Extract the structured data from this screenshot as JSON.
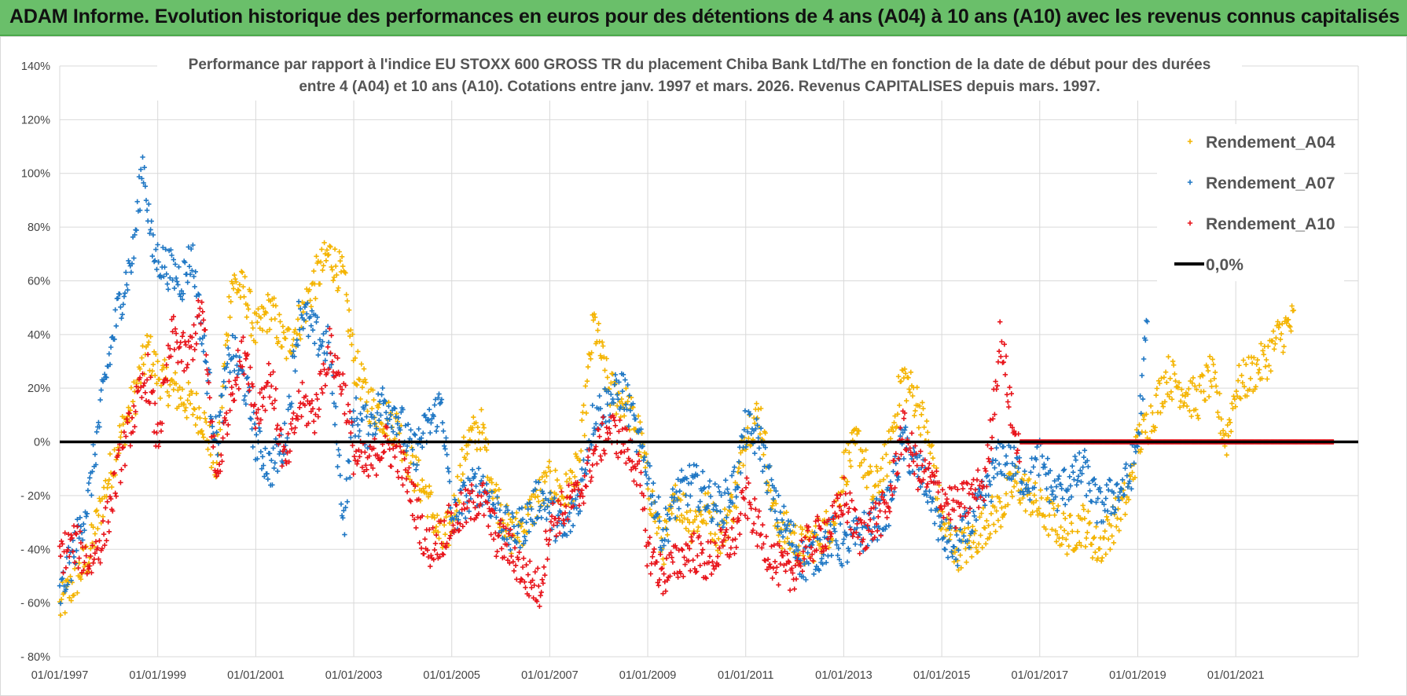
{
  "banner": {
    "title": "ADAM Informe. Evolution historique des performances en euros pour des détentions de 4 ans (A04) à 10 ans (A10) avec les revenus connus capitalisés"
  },
  "colors": {
    "banner_bg": "#6abf6a",
    "A04": "#f4b400",
    "A07": "#1f77c4",
    "A10": "#e8141b",
    "zero_line": "#000000",
    "grid": "#d9d9d9"
  },
  "chart_data": {
    "type": "scatter",
    "title_lines": [
      "Performance par rapport à l'indice EU STOXX 600 GROSS TR  du placement Chiba Bank Ltd/The en fonction de la date de début pour des durées",
      "entre 4 (A04) et 10 ans (A10).  Cotations entre janv. 1997 et mars. 2026.  Revenus CAPITALISES depuis mars. 1997."
    ],
    "x_tick_labels": [
      "01/01/1997",
      "01/01/1999",
      "01/01/2001",
      "01/01/2003",
      "01/01/2005",
      "01/01/2007",
      "01/01/2009",
      "01/01/2011",
      "01/01/2013",
      "01/01/2015",
      "01/01/2017",
      "01/01/2019",
      "01/01/2021"
    ],
    "x_range_years": [
      1997.0,
      2023.5
    ],
    "y_tick_labels": [
      "140%",
      "120%",
      "100%",
      "80%",
      "60%",
      "40%",
      "20%",
      "0%",
      "- 20%",
      "- 40%",
      "- 60%",
      "- 80%"
    ],
    "ylim": [
      -80,
      140
    ],
    "grid": true,
    "legend_position": "top-right",
    "legend": [
      "Rendement_A04",
      "Rendement_A07",
      "Rendement_A10",
      "0,0%"
    ],
    "reference_line": {
      "name": "0,0%",
      "y": 0
    },
    "marker": "+",
    "series": [
      {
        "name": "Rendement_A04",
        "color": "#f4b400",
        "points": [
          [
            1997.0,
            -62
          ],
          [
            1997.3,
            -52
          ],
          [
            1997.6,
            -42
          ],
          [
            1997.9,
            -20
          ],
          [
            1998.2,
            0
          ],
          [
            1998.5,
            15
          ],
          [
            1998.8,
            35
          ],
          [
            1999.0,
            25
          ],
          [
            1999.3,
            20
          ],
          [
            1999.6,
            15
          ],
          [
            1999.9,
            10
          ],
          [
            2000.2,
            -10
          ],
          [
            2000.5,
            60
          ],
          [
            2000.8,
            55
          ],
          [
            2001.0,
            40
          ],
          [
            2001.3,
            50
          ],
          [
            2001.6,
            35
          ],
          [
            2001.9,
            45
          ],
          [
            2002.2,
            60
          ],
          [
            2002.5,
            70
          ],
          [
            2002.8,
            60
          ],
          [
            2003.0,
            30
          ],
          [
            2003.3,
            15
          ],
          [
            2003.6,
            10
          ],
          [
            2003.9,
            5
          ],
          [
            2004.2,
            -10
          ],
          [
            2004.5,
            -20
          ],
          [
            2004.8,
            -38
          ],
          [
            2005.0,
            -30
          ],
          [
            2005.3,
            0
          ],
          [
            2005.6,
            5
          ],
          [
            2005.9,
            -20
          ],
          [
            2006.2,
            -35
          ],
          [
            2006.5,
            -30
          ],
          [
            2006.8,
            -20
          ],
          [
            2007.0,
            -15
          ],
          [
            2007.3,
            -20
          ],
          [
            2007.6,
            -10
          ],
          [
            2007.9,
            45
          ],
          [
            2008.2,
            20
          ],
          [
            2008.5,
            15
          ],
          [
            2008.8,
            5
          ],
          [
            2009.0,
            -15
          ],
          [
            2009.3,
            -40
          ],
          [
            2009.6,
            -20
          ],
          [
            2009.9,
            -30
          ],
          [
            2010.2,
            -25
          ],
          [
            2010.5,
            -35
          ],
          [
            2010.8,
            -20
          ],
          [
            2011.0,
            5
          ],
          [
            2011.3,
            10
          ],
          [
            2011.6,
            -30
          ],
          [
            2011.9,
            -35
          ],
          [
            2012.2,
            -40
          ],
          [
            2012.5,
            -35
          ],
          [
            2012.8,
            -30
          ],
          [
            2013.0,
            -10
          ],
          [
            2013.3,
            0
          ],
          [
            2013.6,
            -20
          ],
          [
            2013.9,
            -5
          ],
          [
            2014.2,
            25
          ],
          [
            2014.5,
            15
          ],
          [
            2014.8,
            -5
          ],
          [
            2015.0,
            -30
          ],
          [
            2015.3,
            -40
          ],
          [
            2015.6,
            -38
          ],
          [
            2015.9,
            -30
          ],
          [
            2016.2,
            -25
          ],
          [
            2016.5,
            -15
          ],
          [
            2016.8,
            -20
          ],
          [
            2017.0,
            -25
          ],
          [
            2017.3,
            -30
          ],
          [
            2017.6,
            -35
          ],
          [
            2017.9,
            -30
          ],
          [
            2018.2,
            -40
          ],
          [
            2018.5,
            -30
          ],
          [
            2018.8,
            -20
          ],
          [
            2019.0,
            0
          ],
          [
            2019.3,
            10
          ],
          [
            2019.6,
            25
          ],
          [
            2019.9,
            20
          ],
          [
            2020.2,
            15
          ],
          [
            2020.5,
            25
          ],
          [
            2020.8,
            0
          ],
          [
            2021.0,
            20
          ],
          [
            2021.3,
            25
          ],
          [
            2021.6,
            30
          ],
          [
            2021.9,
            40
          ],
          [
            2022.2,
            45
          ]
        ]
      },
      {
        "name": "Rendement_A07",
        "color": "#1f77c4",
        "points": [
          [
            1997.0,
            -58
          ],
          [
            1997.3,
            -40
          ],
          [
            1997.6,
            -20
          ],
          [
            1997.9,
            20
          ],
          [
            1998.2,
            50
          ],
          [
            1998.5,
            70
          ],
          [
            1998.7,
            105
          ],
          [
            1998.9,
            70
          ],
          [
            1999.2,
            65
          ],
          [
            1999.5,
            60
          ],
          [
            1999.7,
            70
          ],
          [
            1999.9,
            40
          ],
          [
            2000.2,
            0
          ],
          [
            2000.5,
            35
          ],
          [
            2000.8,
            20
          ],
          [
            2001.0,
            0
          ],
          [
            2001.3,
            -10
          ],
          [
            2001.6,
            0
          ],
          [
            2001.9,
            50
          ],
          [
            2002.2,
            40
          ],
          [
            2002.5,
            35
          ],
          [
            2002.8,
            -30
          ],
          [
            2003.0,
            10
          ],
          [
            2003.3,
            5
          ],
          [
            2003.6,
            15
          ],
          [
            2003.9,
            10
          ],
          [
            2004.2,
            -5
          ],
          [
            2004.5,
            5
          ],
          [
            2004.8,
            15
          ],
          [
            2005.0,
            -30
          ],
          [
            2005.3,
            -20
          ],
          [
            2005.6,
            -15
          ],
          [
            2005.9,
            -25
          ],
          [
            2006.2,
            -35
          ],
          [
            2006.5,
            -30
          ],
          [
            2006.8,
            -20
          ],
          [
            2007.0,
            -25
          ],
          [
            2007.3,
            -35
          ],
          [
            2007.6,
            -20
          ],
          [
            2007.9,
            10
          ],
          [
            2008.2,
            15
          ],
          [
            2008.5,
            20
          ],
          [
            2008.8,
            0
          ],
          [
            2009.0,
            -10
          ],
          [
            2009.3,
            -35
          ],
          [
            2009.6,
            -20
          ],
          [
            2009.9,
            -15
          ],
          [
            2010.2,
            -20
          ],
          [
            2010.5,
            -25
          ],
          [
            2010.8,
            -15
          ],
          [
            2011.0,
            5
          ],
          [
            2011.3,
            0
          ],
          [
            2011.6,
            -25
          ],
          [
            2011.9,
            -35
          ],
          [
            2012.2,
            -45
          ],
          [
            2012.5,
            -40
          ],
          [
            2012.8,
            -35
          ],
          [
            2013.0,
            -40
          ],
          [
            2013.3,
            -35
          ],
          [
            2013.6,
            -30
          ],
          [
            2013.9,
            -25
          ],
          [
            2014.2,
            0
          ],
          [
            2014.5,
            -10
          ],
          [
            2014.8,
            -20
          ],
          [
            2015.0,
            -35
          ],
          [
            2015.3,
            -40
          ],
          [
            2015.6,
            -30
          ],
          [
            2015.9,
            -20
          ],
          [
            2016.2,
            -5
          ],
          [
            2016.5,
            -10
          ],
          [
            2016.8,
            -15
          ],
          [
            2017.0,
            -5
          ],
          [
            2017.3,
            -20
          ],
          [
            2017.6,
            -15
          ],
          [
            2017.9,
            -10
          ],
          [
            2018.2,
            -25
          ],
          [
            2018.5,
            -20
          ],
          [
            2018.8,
            -15
          ],
          [
            2019.0,
            0
          ],
          [
            2019.2,
            45
          ]
        ]
      },
      {
        "name": "Rendement_A10",
        "color": "#e8141b",
        "points": [
          [
            1997.0,
            -42
          ],
          [
            1997.3,
            -38
          ],
          [
            1997.6,
            -45
          ],
          [
            1997.9,
            -35
          ],
          [
            1998.2,
            -10
          ],
          [
            1998.5,
            10
          ],
          [
            1998.8,
            25
          ],
          [
            1999.0,
            0
          ],
          [
            1999.3,
            40
          ],
          [
            1999.6,
            30
          ],
          [
            1999.9,
            50
          ],
          [
            2000.2,
            -15
          ],
          [
            2000.5,
            20
          ],
          [
            2000.8,
            35
          ],
          [
            2001.0,
            10
          ],
          [
            2001.3,
            25
          ],
          [
            2001.6,
            -10
          ],
          [
            2001.9,
            15
          ],
          [
            2002.2,
            10
          ],
          [
            2002.5,
            35
          ],
          [
            2002.8,
            20
          ],
          [
            2003.0,
            -5
          ],
          [
            2003.3,
            -10
          ],
          [
            2003.6,
            0
          ],
          [
            2003.9,
            -5
          ],
          [
            2004.2,
            -20
          ],
          [
            2004.5,
            -40
          ],
          [
            2004.8,
            -35
          ],
          [
            2005.0,
            -30
          ],
          [
            2005.3,
            -25
          ],
          [
            2005.6,
            -20
          ],
          [
            2005.9,
            -35
          ],
          [
            2006.2,
            -40
          ],
          [
            2006.5,
            -50
          ],
          [
            2006.8,
            -55
          ],
          [
            2007.0,
            -30
          ],
          [
            2007.3,
            -25
          ],
          [
            2007.6,
            -20
          ],
          [
            2007.9,
            -5
          ],
          [
            2008.2,
            5
          ],
          [
            2008.5,
            0
          ],
          [
            2008.8,
            -10
          ],
          [
            2009.0,
            -40
          ],
          [
            2009.3,
            -50
          ],
          [
            2009.6,
            -45
          ],
          [
            2009.9,
            -40
          ],
          [
            2010.2,
            -45
          ],
          [
            2010.5,
            -40
          ],
          [
            2010.8,
            -35
          ],
          [
            2011.0,
            -20
          ],
          [
            2011.3,
            -35
          ],
          [
            2011.6,
            -45
          ],
          [
            2011.9,
            -50
          ],
          [
            2012.2,
            -40
          ],
          [
            2012.5,
            -35
          ],
          [
            2012.8,
            -30
          ],
          [
            2013.0,
            -20
          ],
          [
            2013.3,
            -35
          ],
          [
            2013.6,
            -30
          ],
          [
            2013.9,
            -25
          ],
          [
            2014.2,
            5
          ],
          [
            2014.5,
            -10
          ],
          [
            2014.8,
            -15
          ],
          [
            2015.0,
            -20
          ],
          [
            2015.3,
            -25
          ],
          [
            2015.6,
            -20
          ],
          [
            2015.9,
            -15
          ],
          [
            2016.2,
            40
          ],
          [
            2016.5,
            0
          ],
          [
            2017.0,
            0
          ],
          [
            2018.0,
            0
          ],
          [
            2019.0,
            0
          ],
          [
            2020.0,
            0
          ],
          [
            2021.0,
            0
          ],
          [
            2022.0,
            0
          ],
          [
            2023.0,
            0
          ]
        ]
      }
    ]
  }
}
